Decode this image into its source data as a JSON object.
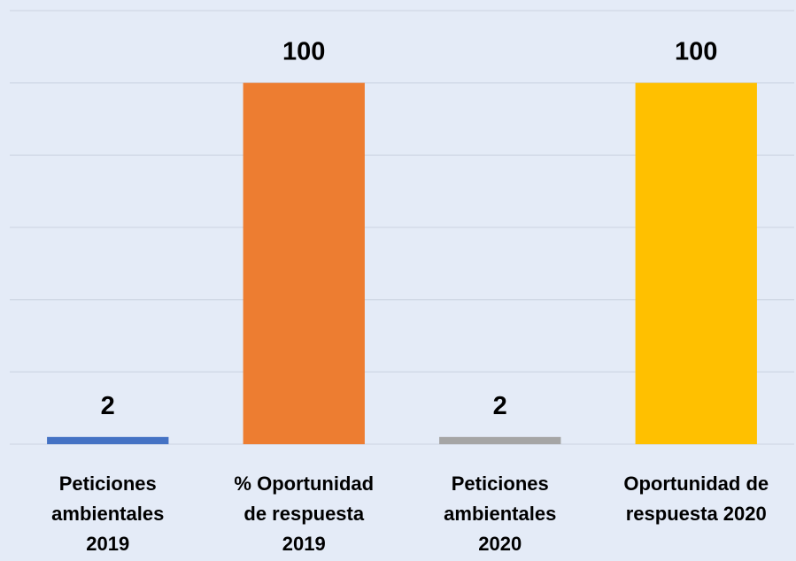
{
  "chart_data": {
    "type": "bar",
    "categories": [
      "Peticiones\nambientales\n2019",
      "% Oportunidad\nde respuesta\n2019",
      "Peticiones\nambientales\n2020",
      "Oportunidad de\nrespuesta 2020"
    ],
    "values": [
      2,
      100,
      2,
      100
    ],
    "colors": [
      "#4472c4",
      "#ed7d31",
      "#a5a5a5",
      "#ffc000"
    ],
    "ylim": [
      0,
      120
    ],
    "yticks": [
      0,
      20,
      40,
      60,
      80,
      100,
      120
    ],
    "grid": true
  }
}
